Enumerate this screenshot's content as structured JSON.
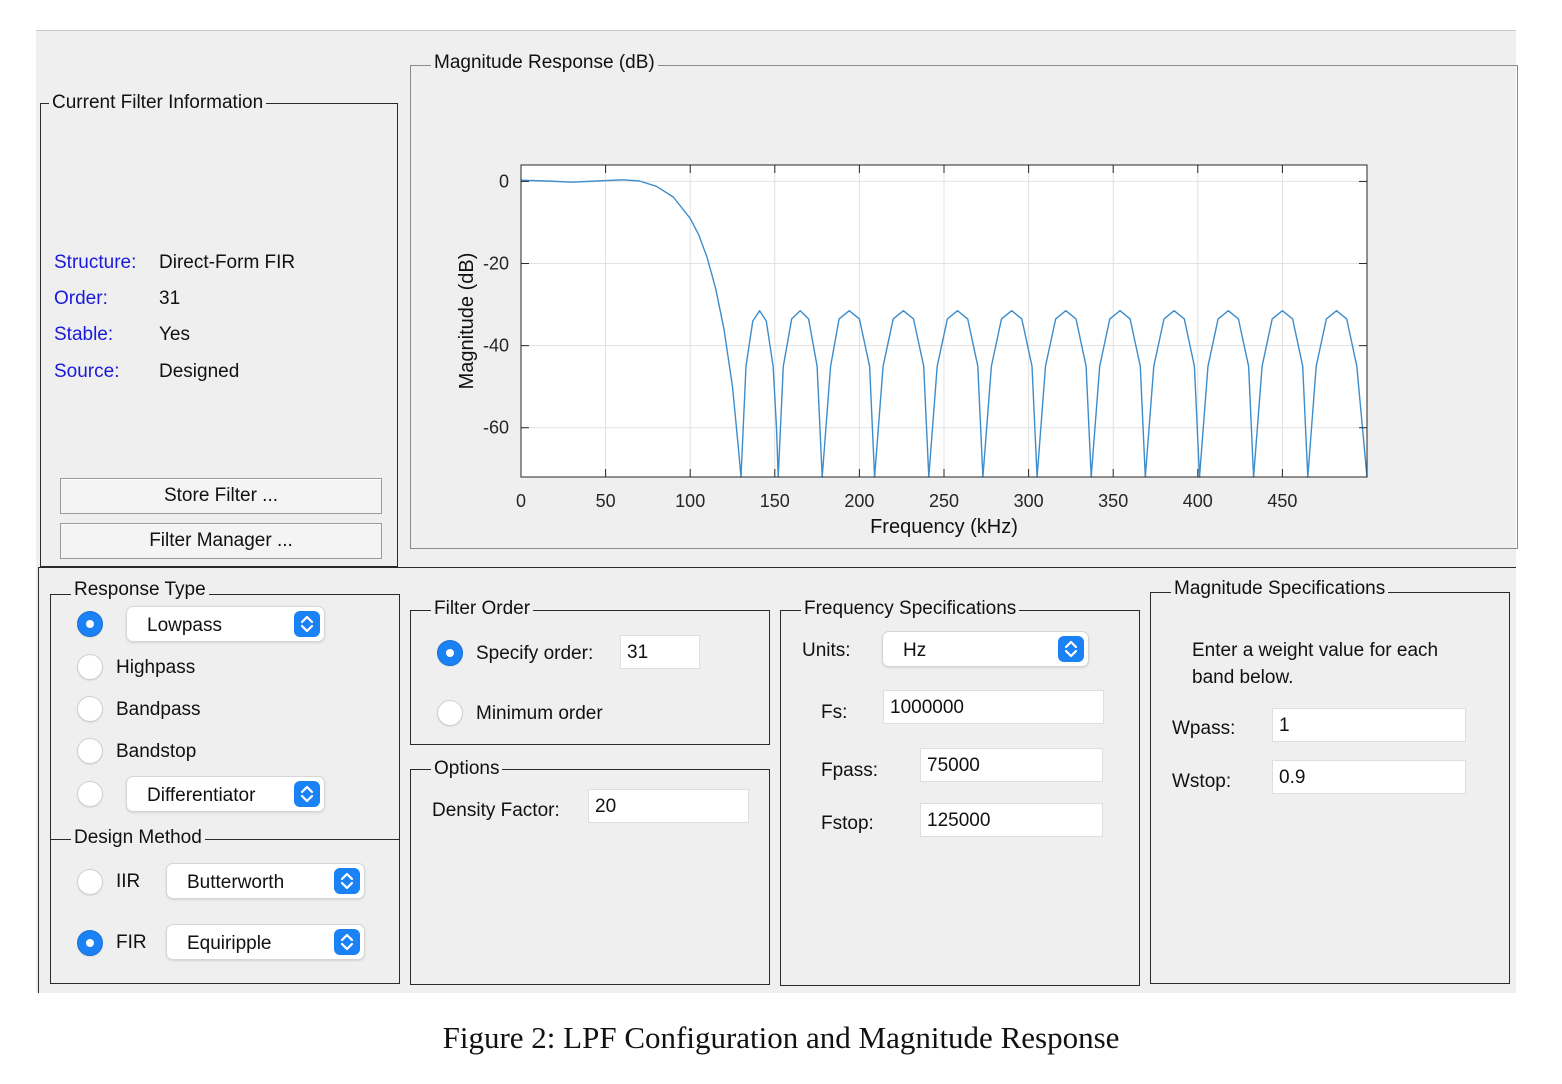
{
  "filter_info": {
    "title": "Current Filter Information",
    "rows": [
      {
        "label": "Structure:",
        "value": "Direct-Form FIR"
      },
      {
        "label": "Order:",
        "value": "31"
      },
      {
        "label": "Stable:",
        "value": "Yes"
      },
      {
        "label": "Source:",
        "value": "Designed"
      }
    ],
    "store_button": "Store Filter ...",
    "manager_button": "Filter Manager ..."
  },
  "plot_panel": {
    "title": "Magnitude Response (dB)"
  },
  "chart_data": {
    "type": "line",
    "xlabel": "Frequency (kHz)",
    "ylabel": "Magnitude (dB)",
    "xlim": [
      0,
      500
    ],
    "ylim": [
      -72,
      4
    ],
    "xticks": [
      0,
      50,
      100,
      150,
      200,
      250,
      300,
      350,
      400,
      450
    ],
    "yticks": [
      0,
      -20,
      -40,
      -60
    ],
    "grid": true,
    "color": "#3d8dcc",
    "series": [
      {
        "x": [
          0,
          15,
          30,
          45,
          60,
          70,
          80,
          90,
          100,
          105,
          110,
          115,
          120,
          125,
          128.5,
          130,
          133,
          137,
          141,
          145,
          149,
          151,
          152,
          155,
          160,
          165,
          170,
          175,
          178,
          183,
          188,
          194,
          200,
          206,
          209,
          214,
          220,
          226,
          232,
          238,
          241,
          246,
          252,
          258,
          264,
          270,
          273,
          278,
          284,
          290,
          296,
          302,
          305,
          310,
          316,
          322,
          328,
          334,
          337,
          342,
          348,
          354,
          360,
          366,
          369,
          374,
          380,
          386,
          392,
          398,
          401,
          406,
          412,
          418,
          424,
          430,
          433,
          438,
          444,
          450,
          456,
          462,
          465,
          470,
          476,
          482,
          488,
          494,
          500
        ],
        "y": [
          0.3,
          0.1,
          -0.2,
          0.1,
          0.4,
          0.1,
          -1.2,
          -3.8,
          -9,
          -13,
          -18.5,
          -26,
          -36,
          -50,
          -65,
          -72,
          -45,
          -34,
          -31.5,
          -34,
          -45,
          -60,
          -72,
          -45,
          -33.5,
          -31.5,
          -33.5,
          -45,
          -72,
          -45,
          -33.5,
          -31.5,
          -33.5,
          -45,
          -72,
          -45,
          -33.5,
          -31.5,
          -33.5,
          -45,
          -72,
          -45,
          -33.5,
          -31.5,
          -33.5,
          -45,
          -72,
          -45,
          -33.5,
          -31.5,
          -33.5,
          -45,
          -72,
          -45,
          -33.5,
          -31.5,
          -33.5,
          -45,
          -72,
          -45,
          -33.5,
          -31.5,
          -33.5,
          -45,
          -72,
          -45,
          -33.5,
          -31.5,
          -33.5,
          -45,
          -72,
          -45,
          -33.5,
          -31.5,
          -33.5,
          -45,
          -72,
          -45,
          -33.5,
          -31.5,
          -33.5,
          -45,
          -72,
          -45,
          -33.5,
          -31.5,
          -33.5,
          -45,
          -72
        ]
      }
    ]
  },
  "response_type": {
    "title": "Response Type",
    "lowpass": "Lowpass",
    "highpass": "Highpass",
    "bandpass": "Bandpass",
    "bandstop": "Bandstop",
    "other": "Differentiator"
  },
  "design_method": {
    "title": "Design Method",
    "iir_label": "IIR",
    "iir_value": "Butterworth",
    "fir_label": "FIR",
    "fir_value": "Equiripple"
  },
  "filter_order": {
    "title": "Filter Order",
    "specify_label": "Specify order:",
    "specify_value": "31",
    "minimum_label": "Minimum order"
  },
  "options": {
    "title": "Options",
    "density_label": "Density Factor:",
    "density_value": "20"
  },
  "freq_specs": {
    "title": "Frequency Specifications",
    "units_label": "Units:",
    "units_value": "Hz",
    "fs_label": "Fs:",
    "fs_value": "1000000",
    "fpass_label": "Fpass:",
    "fpass_value": "75000",
    "fstop_label": "Fstop:",
    "fstop_value": "125000"
  },
  "mag_specs": {
    "title": "Magnitude Specifications",
    "desc_line1": "Enter a weight value for each",
    "desc_line2": "band below.",
    "wpass_label": "Wpass:",
    "wpass_value": "1",
    "wstop_label": "Wstop:",
    "wstop_value": "0.9"
  },
  "caption": "Figure 2: LPF Configuration and Magnitude Response"
}
